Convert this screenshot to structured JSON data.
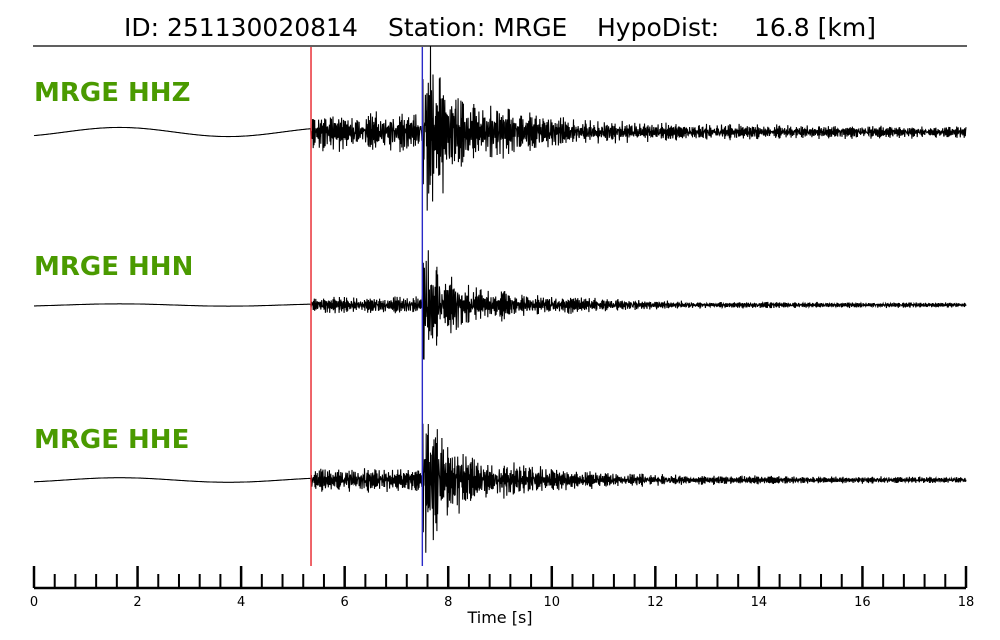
{
  "header": {
    "id_text": "ID: 251130020814",
    "station_text": "Station: MRGE",
    "hypodist_text": "HypoDist:",
    "hypodist_value": "16.8 [km]"
  },
  "colors": {
    "label": "#4a9a00",
    "p_pick": "#e8232a",
    "s_pick": "#2a2ac8",
    "trace": "#000000"
  },
  "chart_data": {
    "type": "line",
    "xlabel": "Time [s]",
    "xlim": [
      0,
      18
    ],
    "x_major_ticks": [
      0,
      2,
      4,
      6,
      8,
      10,
      12,
      14,
      16,
      18
    ],
    "x_minor_step": 0.4,
    "picks": [
      {
        "name": "P",
        "time": 5.35,
        "color": "#e8232a"
      },
      {
        "name": "S",
        "time": 7.5,
        "color": "#2a2ac8"
      }
    ],
    "series": [
      {
        "name": "MRGE HHZ",
        "pre_amp": 0.3,
        "p_amp": 0.55,
        "s_amp": 1.9,
        "coda_amp": 0.18,
        "seed": 11
      },
      {
        "name": "MRGE HHN",
        "pre_amp": 0.08,
        "p_amp": 0.25,
        "s_amp": 1.3,
        "coda_amp": 0.08,
        "seed": 23
      },
      {
        "name": "MRGE HHE",
        "pre_amp": 0.15,
        "p_amp": 0.35,
        "s_amp": 1.5,
        "coda_amp": 0.1,
        "seed": 37
      }
    ]
  }
}
